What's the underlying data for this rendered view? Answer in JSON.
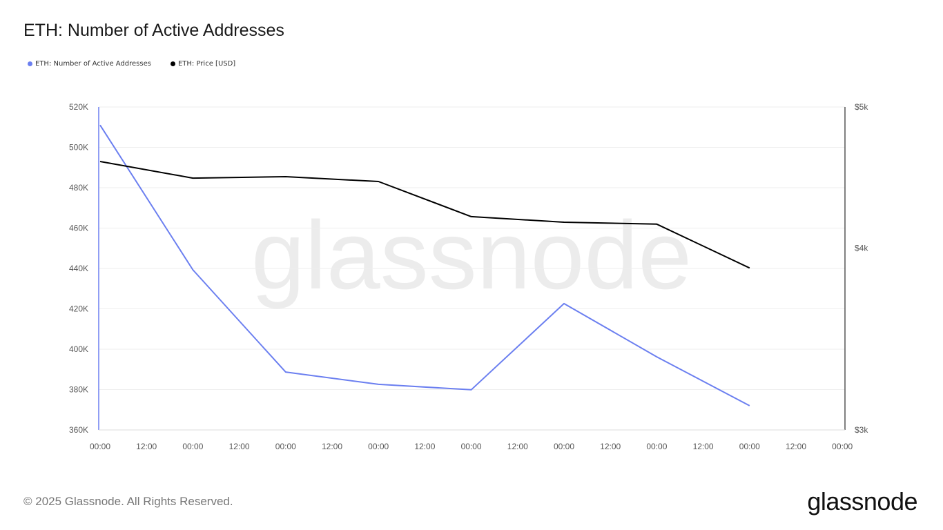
{
  "chart_data": {
    "type": "line",
    "title": "ETH: Number of Active Addresses",
    "x_ticks": [
      "00:00",
      "12:00",
      "00:00",
      "12:00",
      "00:00",
      "12:00",
      "00:00",
      "12:00",
      "00:00",
      "12:00",
      "00:00",
      "12:00",
      "00:00",
      "12:00",
      "00:00",
      "12:00",
      "00:00"
    ],
    "x": [
      0,
      1,
      2,
      3,
      4,
      5,
      6,
      7
    ],
    "x_unit": "days",
    "left_axis": {
      "ticks": [
        "360K",
        "380K",
        "400K",
        "420K",
        "440K",
        "460K",
        "480K",
        "500K",
        "520K"
      ],
      "range": [
        360000,
        520000
      ]
    },
    "right_axis": {
      "ticks": [
        {
          "label": "$3k",
          "value": 3000
        },
        {
          "label": "$4k",
          "value": 4000
        },
        {
          "label": "$5k",
          "value": 5000
        }
      ],
      "range": [
        3000,
        5000
      ],
      "scale": "log"
    },
    "series": [
      {
        "name": "ETH: Number of Active Addresses",
        "axis": "left",
        "color": "#6b7ff0",
        "values": [
          511000,
          439300,
          388700,
          382600,
          379900,
          422600,
          396200,
          372000
        ]
      },
      {
        "name": "ETH: Price [USD]",
        "axis": "right",
        "color": "#000000",
        "values": [
          4587,
          4468,
          4478,
          4444,
          4204,
          4167,
          4154,
          3876
        ]
      }
    ],
    "legend_position": "top-left",
    "grid": true,
    "watermark": "glassnode"
  },
  "footer": {
    "copyright": "© 2025 Glassnode. All Rights Reserved.",
    "brand": "glassnode"
  }
}
